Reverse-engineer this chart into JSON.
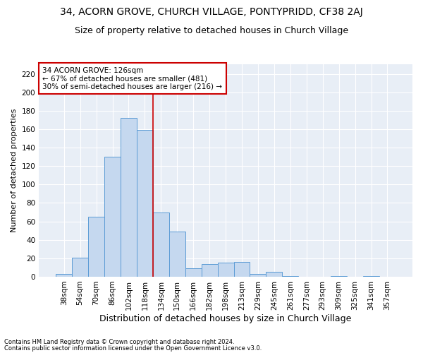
{
  "title": "34, ACORN GROVE, CHURCH VILLAGE, PONTYPRIDD, CF38 2AJ",
  "subtitle": "Size of property relative to detached houses in Church Village",
  "xlabel": "Distribution of detached houses by size in Church Village",
  "ylabel": "Number of detached properties",
  "footnote1": "Contains HM Land Registry data © Crown copyright and database right 2024.",
  "footnote2": "Contains public sector information licensed under the Open Government Licence v3.0.",
  "categories": [
    "38sqm",
    "54sqm",
    "70sqm",
    "86sqm",
    "102sqm",
    "118sqm",
    "134sqm",
    "150sqm",
    "166sqm",
    "182sqm",
    "198sqm",
    "213sqm",
    "229sqm",
    "245sqm",
    "261sqm",
    "277sqm",
    "293sqm",
    "309sqm",
    "325sqm",
    "341sqm",
    "357sqm"
  ],
  "values": [
    3,
    21,
    65,
    130,
    172,
    159,
    70,
    49,
    9,
    14,
    15,
    16,
    3,
    5,
    1,
    0,
    0,
    1,
    0,
    1,
    0
  ],
  "bar_color": "#c5d8ef",
  "bar_edge_color": "#5b9bd5",
  "red_line_x": 5.5,
  "highlight_color": "#cc0000",
  "annotation_text": "34 ACORN GROVE: 126sqm\n← 67% of detached houses are smaller (481)\n30% of semi-detached houses are larger (216) →",
  "annotation_box_color": "#ffffff",
  "annotation_box_edge": "#cc0000",
  "ylim": [
    0,
    230
  ],
  "yticks": [
    0,
    20,
    40,
    60,
    80,
    100,
    120,
    140,
    160,
    180,
    200,
    220
  ],
  "bg_color": "#e8eef6",
  "title_fontsize": 10,
  "subtitle_fontsize": 9,
  "xlabel_fontsize": 9,
  "ylabel_fontsize": 8,
  "tick_fontsize": 7.5,
  "annotation_fontsize": 7.5,
  "footnote_fontsize": 6
}
